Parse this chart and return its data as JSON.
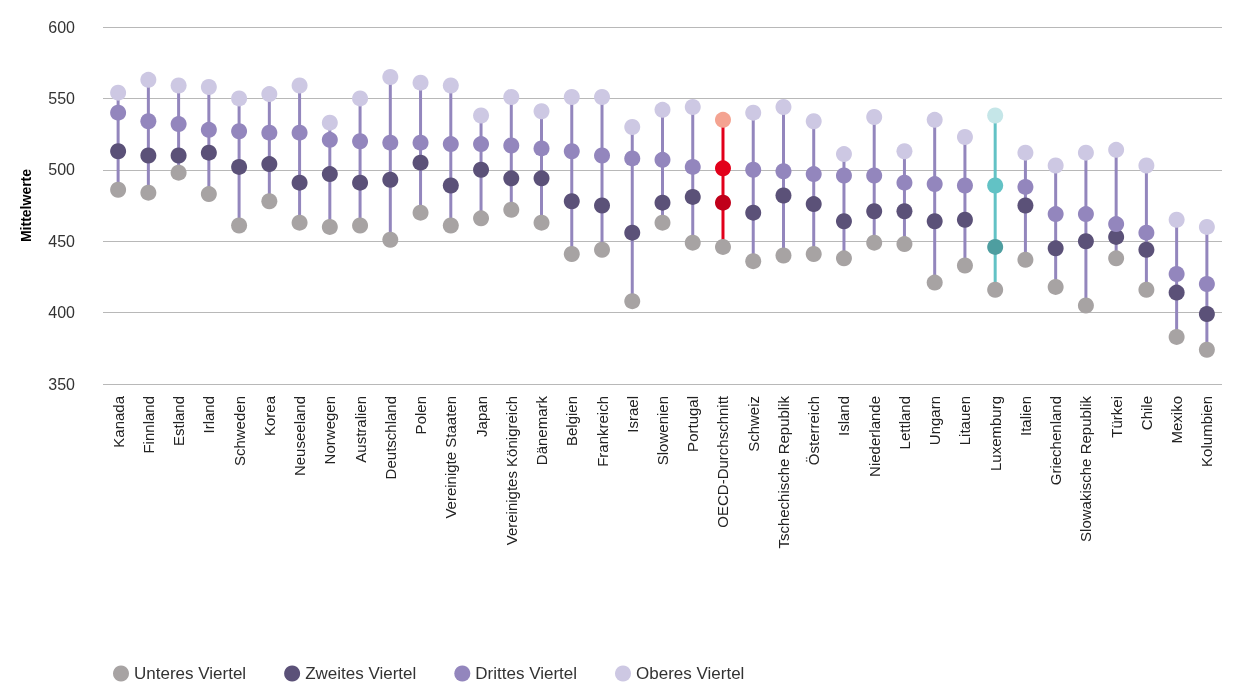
{
  "chart_data": {
    "type": "scatter",
    "ylabel": "Mittelwerte",
    "ylim": [
      350,
      600
    ],
    "yticks": [
      350,
      400,
      450,
      500,
      550,
      600
    ],
    "grid": "y",
    "legend": "bottom left",
    "marker": "circle",
    "categories": [
      "Kanada",
      "Finnland",
      "Estland",
      "Irland",
      "Schweden",
      "Korea",
      "Neuseeland",
      "Norwegen",
      "Australien",
      "Deutschland",
      "Polen",
      "Vereinigte Staaten",
      "Japan",
      "Vereinigtes Königreich",
      "Dänemark",
      "Belgien",
      "Frankreich",
      "Israel",
      "Slowenien",
      "Portugal",
      "OECD-Durchschnitt",
      "Schweiz",
      "Tschechische Republik",
      "Österreich",
      "Island",
      "Niederlande",
      "Lettland",
      "Ungarn",
      "Litauen",
      "Luxemburg",
      "Italien",
      "Griechenland",
      "Slowakische Republik",
      "Türkei",
      "Chile",
      "Mexiko",
      "Kolumbien"
    ],
    "series": [
      {
        "name": "Unteres Viertel",
        "color": "#a7a3a3",
        "values": [
          486,
          484,
          498,
          483,
          461,
          478,
          463,
          460,
          461,
          451,
          470,
          461,
          466,
          472,
          463,
          441,
          444,
          408,
          463,
          449,
          446,
          436,
          440,
          441,
          438,
          449,
          448,
          421,
          433,
          416,
          437,
          418,
          405,
          438,
          416,
          383,
          374
        ]
      },
      {
        "name": "Zweites Viertel",
        "color": "#5b5178",
        "colors": [
          "#5b5178",
          "#5b5178",
          "#5b5178",
          "#5b5178",
          "#5b5178",
          "#5b5178",
          "#5b5178",
          "#5b5178",
          "#5b5178",
          "#5b5178",
          "#5b5178",
          "#5b5178",
          "#5b5178",
          "#5b5178",
          "#5b5178",
          "#5b5178",
          "#5b5178",
          "#5b5178",
          "#5b5178",
          "#5b5178",
          "#c0001a",
          "#5b5178",
          "#5b5178",
          "#5b5178",
          "#5b5178",
          "#5b5178",
          "#5b5178",
          "#5b5178",
          "#5b5178",
          "#4e9ea0",
          "#5b5178",
          "#5b5178",
          "#5b5178",
          "#5b5178",
          "#5b5178",
          "#5b5178",
          "#5b5178"
        ],
        "values": [
          513,
          510,
          510,
          512,
          502,
          504,
          491,
          497,
          491,
          493,
          505,
          489,
          500,
          494,
          494,
          478,
          475,
          456,
          477,
          481,
          477,
          470,
          482,
          476,
          464,
          471,
          471,
          464,
          465,
          446,
          475,
          445,
          450,
          453,
          444,
          414,
          399
        ]
      },
      {
        "name": "Drittes Viertel",
        "color": "#9386bd",
        "colors": [
          "#9386bd",
          "#9386bd",
          "#9386bd",
          "#9386bd",
          "#9386bd",
          "#9386bd",
          "#9386bd",
          "#9386bd",
          "#9386bd",
          "#9386bd",
          "#9386bd",
          "#9386bd",
          "#9386bd",
          "#9386bd",
          "#9386bd",
          "#9386bd",
          "#9386bd",
          "#9386bd",
          "#9386bd",
          "#9386bd",
          "#e2001a",
          "#9386bd",
          "#9386bd",
          "#9386bd",
          "#9386bd",
          "#9386bd",
          "#9386bd",
          "#9386bd",
          "#9386bd",
          "#62c2c5",
          "#9386bd",
          "#9386bd",
          "#9386bd",
          "#9386bd",
          "#9386bd",
          "#9386bd",
          "#9386bd"
        ],
        "values": [
          540,
          534,
          532,
          528,
          527,
          526,
          526,
          521,
          520,
          519,
          519,
          518,
          518,
          517,
          515,
          513,
          510,
          508,
          507,
          502,
          501,
          500,
          499,
          497,
          496,
          496,
          491,
          490,
          489,
          489,
          488,
          469,
          469,
          462,
          456,
          427,
          420
        ]
      },
      {
        "name": "Oberes Viertel",
        "color": "#cdc8e3",
        "colors": [
          "#cdc8e3",
          "#cdc8e3",
          "#cdc8e3",
          "#cdc8e3",
          "#cdc8e3",
          "#cdc8e3",
          "#cdc8e3",
          "#cdc8e3",
          "#cdc8e3",
          "#cdc8e3",
          "#cdc8e3",
          "#cdc8e3",
          "#cdc8e3",
          "#cdc8e3",
          "#cdc8e3",
          "#cdc8e3",
          "#cdc8e3",
          "#cdc8e3",
          "#cdc8e3",
          "#cdc8e3",
          "#f4a391",
          "#cdc8e3",
          "#cdc8e3",
          "#cdc8e3",
          "#cdc8e3",
          "#cdc8e3",
          "#cdc8e3",
          "#cdc8e3",
          "#cdc8e3",
          "#c5e6e8",
          "#cdc8e3",
          "#cdc8e3",
          "#cdc8e3",
          "#cdc8e3",
          "#cdc8e3",
          "#cdc8e3",
          "#cdc8e3"
        ],
        "values": [
          554,
          563,
          559,
          558,
          550,
          553,
          559,
          533,
          550,
          565,
          561,
          559,
          538,
          551,
          541,
          551,
          551,
          530,
          542,
          544,
          535,
          540,
          544,
          534,
          511,
          537,
          513,
          535,
          523,
          538,
          512,
          503,
          512,
          514,
          503,
          465,
          460
        ]
      }
    ]
  }
}
